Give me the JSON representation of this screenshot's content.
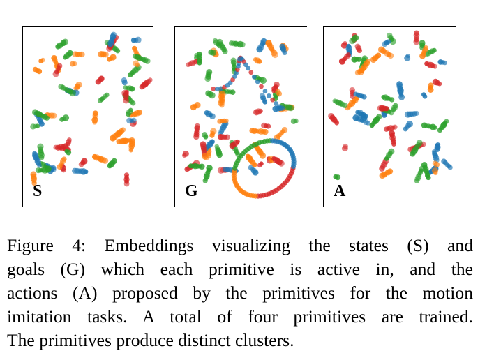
{
  "figure": {
    "palette": {
      "red": "#d62728",
      "blue": "#1f77b4",
      "green": "#2ca02c",
      "orange": "#ff7f0e"
    },
    "panels": [
      {
        "id": "panel-s",
        "label": "S"
      },
      {
        "id": "panel-g",
        "label": "G"
      },
      {
        "id": "panel-a",
        "label": "A"
      }
    ],
    "caption_lines": [
      "Figure 4:  Embeddings visualizing the states (S) and",
      "goals (G) which each primitive is active in, and the",
      "actions (A) proposed by the primitives for the motion",
      "imitation tasks.  A total of four primitives are trained.",
      "The primitives produce distinct clusters."
    ]
  }
}
